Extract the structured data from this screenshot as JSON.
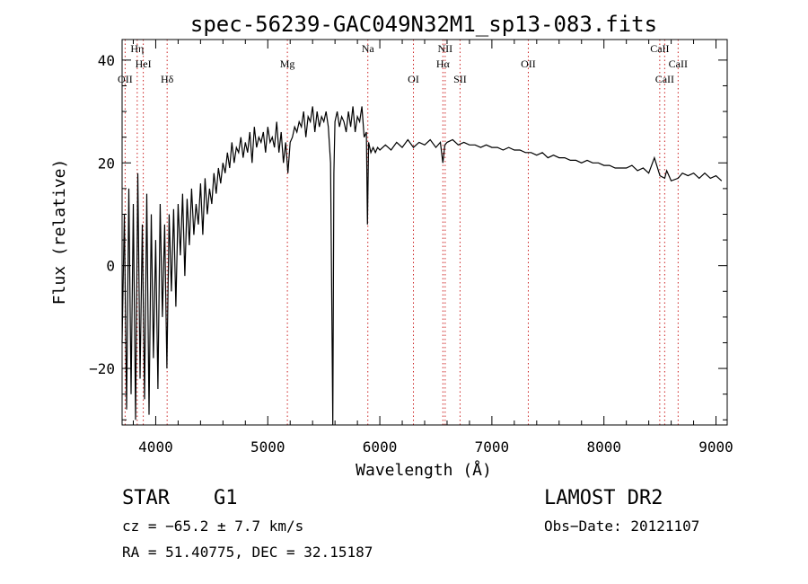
{
  "chart_data": {
    "type": "line",
    "title": "spec-56239-GAC049N32M1_sp13-083.fits",
    "xlabel": "Wavelength (Å)",
    "ylabel": "Flux (relative)",
    "xlim": [
      3700,
      9100
    ],
    "ylim": [
      -31,
      44
    ],
    "x_ticks": [
      4000,
      5000,
      6000,
      7000,
      8000,
      9000
    ],
    "y_ticks": [
      -20,
      0,
      20,
      40
    ],
    "y_tick_labels": [
      "−20",
      "0",
      "20",
      "40"
    ],
    "grid": false,
    "line_color": "#000000",
    "marker_color": "#cc2222",
    "series": [
      {
        "x": [
          3700,
          3720,
          3740,
          3760,
          3780,
          3800,
          3820,
          3840,
          3860,
          3880,
          3900,
          3920,
          3940,
          3960,
          3980,
          4000,
          4020,
          4040,
          4060,
          4080,
          4100,
          4120,
          4140,
          4160,
          4180,
          4200,
          4220,
          4240,
          4260,
          4280,
          4300,
          4320,
          4340,
          4360,
          4380,
          4400,
          4420,
          4440,
          4460,
          4480,
          4500,
          4520,
          4540,
          4560,
          4580,
          4600,
          4620,
          4640,
          4660,
          4680,
          4700,
          4720,
          4740,
          4760,
          4780,
          4800,
          4820,
          4840,
          4860,
          4880,
          4900,
          4920,
          4940,
          4960,
          4980,
          5000,
          5020,
          5040,
          5060,
          5080,
          5100,
          5120,
          5140,
          5160,
          5180,
          5200,
          5220,
          5240,
          5260,
          5280,
          5300,
          5320,
          5340,
          5360,
          5380,
          5400,
          5420,
          5440,
          5460,
          5480,
          5500,
          5520,
          5540,
          5560,
          5570,
          5580,
          5590,
          5600,
          5620,
          5640,
          5660,
          5680,
          5700,
          5720,
          5740,
          5760,
          5780,
          5800,
          5820,
          5840,
          5860,
          5880,
          5890,
          5900,
          5920,
          5940,
          5960,
          5980,
          6000,
          6050,
          6100,
          6150,
          6200,
          6250,
          6300,
          6350,
          6400,
          6450,
          6500,
          6540,
          6563,
          6580,
          6600,
          6650,
          6700,
          6750,
          6800,
          6850,
          6900,
          6950,
          7000,
          7050,
          7100,
          7150,
          7200,
          7250,
          7300,
          7350,
          7400,
          7450,
          7500,
          7550,
          7600,
          7650,
          7700,
          7750,
          7800,
          7850,
          7900,
          7950,
          8000,
          8050,
          8100,
          8150,
          8200,
          8250,
          8300,
          8350,
          8400,
          8450,
          8500,
          8542,
          8560,
          8600,
          8662,
          8700,
          8750,
          8800,
          8850,
          8900,
          8950,
          9000,
          9050
        ],
        "y": [
          -15,
          10,
          -28,
          15,
          -25,
          12,
          -30,
          18,
          -22,
          8,
          -26,
          14,
          -29,
          10,
          -18,
          5,
          -24,
          12,
          -10,
          8,
          -20,
          10,
          -5,
          11,
          -8,
          12,
          2,
          14,
          -2,
          13,
          4,
          15,
          6,
          12,
          8,
          16,
          6,
          17,
          10,
          15,
          12,
          18,
          14,
          19,
          16,
          20,
          18,
          22,
          19,
          24,
          20,
          23,
          22,
          25,
          21,
          24,
          22,
          26,
          20,
          27,
          23,
          25,
          24,
          26,
          22,
          27,
          24,
          25,
          23,
          28,
          22,
          26,
          20,
          24,
          18,
          24,
          25,
          27,
          26,
          28,
          27,
          30,
          25,
          29,
          28,
          31,
          26,
          30,
          27,
          29,
          28,
          30,
          27,
          20,
          -4,
          -32,
          18,
          28,
          30,
          27,
          29,
          28,
          26,
          30,
          27,
          31,
          26,
          29,
          28,
          31,
          25,
          26,
          8,
          24,
          22,
          23,
          22,
          23,
          22.5,
          23.5,
          22.5,
          24,
          23,
          24.5,
          23,
          24,
          23.5,
          24.5,
          23,
          24,
          20,
          23.5,
          24,
          24.5,
          23.5,
          24,
          23.5,
          23.5,
          23,
          23.5,
          23,
          23,
          22.5,
          23,
          22.5,
          22.5,
          22,
          22,
          21.5,
          22,
          21,
          21.5,
          21,
          21,
          20.5,
          20.5,
          20,
          20.5,
          20,
          20,
          19.5,
          19.5,
          19,
          19,
          19,
          19.5,
          18.5,
          19,
          18,
          21,
          17.5,
          17,
          18.5,
          16.5,
          17,
          18,
          17.5,
          18,
          17,
          18,
          17,
          17.5,
          16.5
        ]
      }
    ],
    "lines": [
      {
        "label": "OII",
        "x": 3727
      },
      {
        "label": "HeI",
        "x": 3889
      },
      {
        "label": "Hη",
        "x": 3835
      },
      {
        "label": "Hδ",
        "x": 4102
      },
      {
        "label": "Mg",
        "x": 5175
      },
      {
        "label": "Na",
        "x": 5893
      },
      {
        "label": "OI",
        "x": 6300
      },
      {
        "label": "Hα",
        "x": 6563
      },
      {
        "label": "NII",
        "x": 6583
      },
      {
        "label": "SII",
        "x": 6716
      },
      {
        "label": "OII",
        "x": 7325
      },
      {
        "label": "CaII",
        "x": 8498
      },
      {
        "label": "CaII",
        "x": 8542
      },
      {
        "label": "CaII",
        "x": 8662
      }
    ]
  },
  "footer": {
    "object_class": "STAR",
    "subclass": "G1",
    "survey": "LAMOST DR2",
    "velocity": "cz = −65.2 ± 7.7 km/s",
    "obs_date": "Obs−Date: 20121107",
    "coords": "RA =  51.40775, DEC =  32.15187"
  }
}
